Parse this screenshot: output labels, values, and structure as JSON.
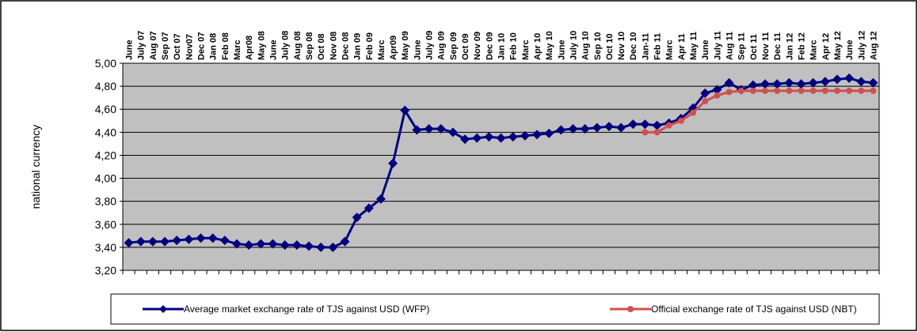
{
  "chart_data": {
    "type": "line",
    "y_label": "national currency",
    "categories": [
      "June",
      "July 07",
      "Aug 07",
      "Sep 07",
      "Oct 07",
      "Nov07",
      "Dec 07",
      "Jan 08",
      "Feb 08",
      "Marc",
      "Apr08",
      "May 08",
      "June",
      "July 08",
      "Aug 08",
      "Sep 08",
      "Oct 08",
      "Nov 08",
      "Dec 08",
      "Jan 09",
      "Feb 09",
      "Marc",
      "Apr09",
      "May 09",
      "June",
      "July 09",
      "Aug 09",
      "Sep 09",
      "Oct 09",
      "Nov 09",
      "Dec 09",
      "Jan 10",
      "Feb 10",
      "Marc",
      "Apr 10",
      "May 10",
      "June",
      "July 10",
      "Aug 10",
      "Sep 10",
      "Oct 10",
      "Nov 10",
      "Dec 10",
      "Jan-11",
      "Feb 11",
      "Marc",
      "Apr 11",
      "May 11",
      "June",
      "July 11",
      "Aug 11",
      "Sep 11",
      "Oct 11",
      "Nov 11",
      "Dec 11",
      "Jan 12",
      "Feb 12",
      "Marc",
      "Apr 12",
      "May 12",
      "June",
      "July 12",
      "Aug 12"
    ],
    "series": [
      {
        "name": "Average market exchange rate of TJS against USD (WFP)",
        "color": "#000080",
        "marker": "diamond",
        "values": [
          3.44,
          3.45,
          3.45,
          3.45,
          3.46,
          3.47,
          3.48,
          3.48,
          3.46,
          3.43,
          3.42,
          3.43,
          3.43,
          3.42,
          3.42,
          3.41,
          3.4,
          3.4,
          3.45,
          3.66,
          3.74,
          3.82,
          4.13,
          4.59,
          4.42,
          4.43,
          4.43,
          4.4,
          4.34,
          4.35,
          4.36,
          4.35,
          4.36,
          4.37,
          4.38,
          4.39,
          4.42,
          4.43,
          4.43,
          4.44,
          4.45,
          4.44,
          4.47,
          4.47,
          4.46,
          4.48,
          4.52,
          4.61,
          4.74,
          4.77,
          4.83,
          4.77,
          4.81,
          4.82,
          4.82,
          4.83,
          4.82,
          4.83,
          4.84,
          4.86,
          4.87,
          4.84,
          4.83
        ]
      },
      {
        "name": "Official exchange rate of TJS against USD (NBT)",
        "color": "#d05050",
        "marker": "circle",
        "values": [
          null,
          null,
          null,
          null,
          null,
          null,
          null,
          null,
          null,
          null,
          null,
          null,
          null,
          null,
          null,
          null,
          null,
          null,
          null,
          null,
          null,
          null,
          null,
          null,
          null,
          null,
          null,
          null,
          null,
          null,
          null,
          null,
          null,
          null,
          null,
          null,
          null,
          null,
          null,
          null,
          null,
          null,
          null,
          4.4,
          4.4,
          4.46,
          4.5,
          4.57,
          4.67,
          4.72,
          4.75,
          4.76,
          4.76,
          4.76,
          4.76,
          4.76,
          4.76,
          4.76,
          4.76,
          4.76,
          4.76,
          4.76,
          4.76
        ]
      }
    ],
    "ylim": [
      3.2,
      5.0
    ],
    "yticks": [
      {
        "value": 3.2,
        "label": "3,20"
      },
      {
        "value": 3.4,
        "label": "3,40"
      },
      {
        "value": 3.6,
        "label": "3,60"
      },
      {
        "value": 3.8,
        "label": "3,80"
      },
      {
        "value": 4.0,
        "label": "4,00"
      },
      {
        "value": 4.2,
        "label": "4,20"
      },
      {
        "value": 4.4,
        "label": "4,40"
      },
      {
        "value": 4.6,
        "label": "4,60"
      },
      {
        "value": 4.8,
        "label": "4,80"
      },
      {
        "value": 5.0,
        "label": "5,00"
      }
    ],
    "grid": true,
    "plot_background": "#c0c0c0",
    "legend": "bottom"
  }
}
